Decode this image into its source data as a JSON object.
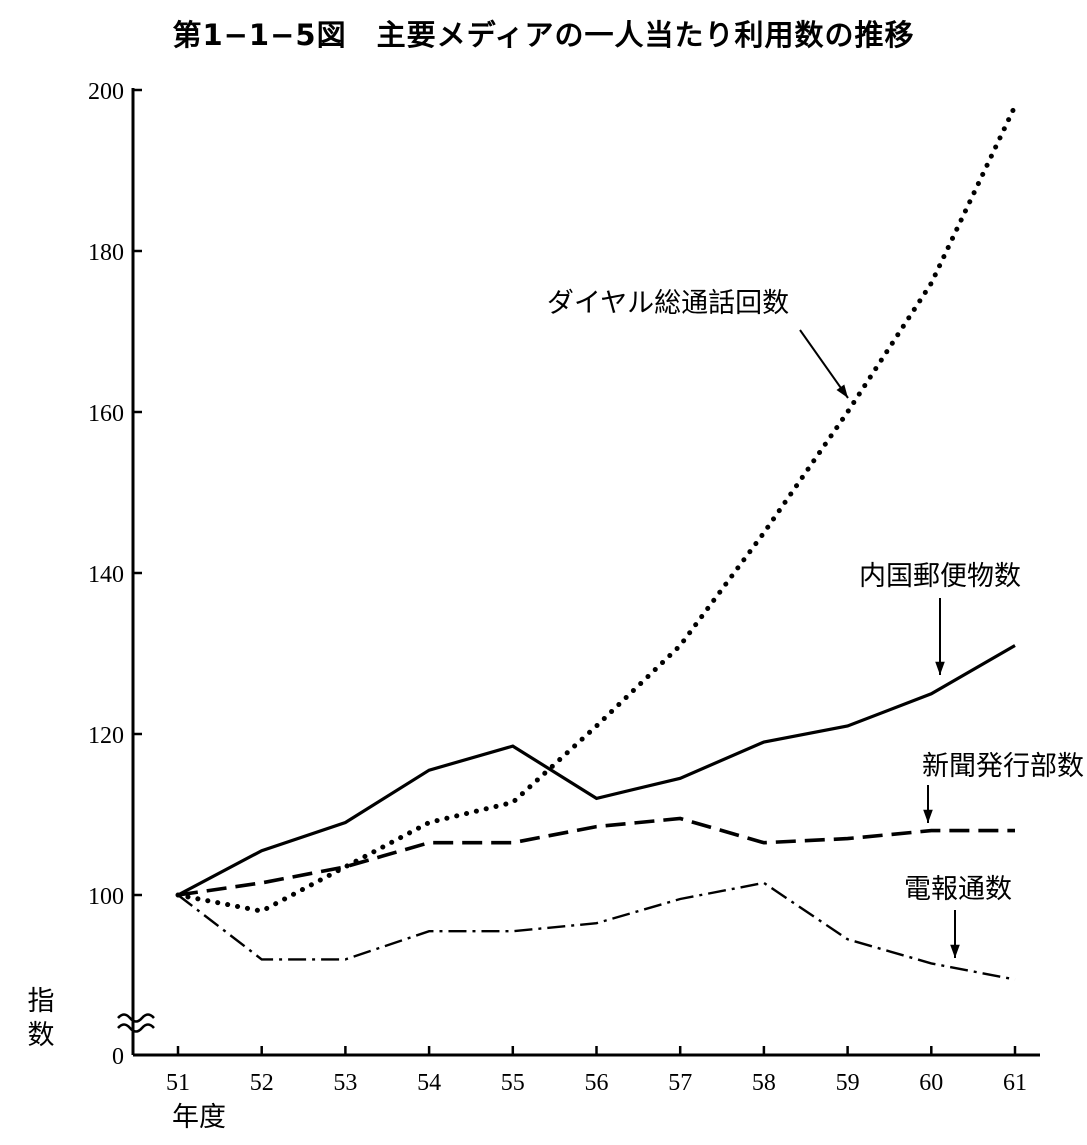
{
  "title": "第1−1−5図　主要メディアの一人当たり利用数の推移",
  "chart_data": {
    "type": "line",
    "categories": [
      "51",
      "52",
      "53",
      "54",
      "55",
      "56",
      "57",
      "58",
      "59",
      "60",
      "61"
    ],
    "xlabel": "年度",
    "ylabel": "指数",
    "yticks": [
      "200",
      "180",
      "160",
      "140",
      "120",
      "100",
      "0"
    ],
    "ylim": [
      0,
      200
    ],
    "axis_break": true,
    "grid": false,
    "series": [
      {
        "name": "ダイヤル総通話回数",
        "style": "dotted",
        "values": [
          100,
          98,
          103.5,
          109,
          111.5,
          121,
          131,
          145,
          160,
          176,
          198
        ]
      },
      {
        "name": "内国郵便物数",
        "style": "solid",
        "values": [
          100,
          105.5,
          109,
          115.5,
          118.5,
          112,
          114.5,
          119,
          121,
          125,
          131
        ]
      },
      {
        "name": "新聞発行部数",
        "style": "dashed",
        "values": [
          100,
          101.5,
          103.5,
          106.5,
          106.5,
          108.5,
          109.5,
          106.5,
          107,
          108,
          108
        ]
      },
      {
        "name": "電報通数",
        "style": "dashdot",
        "values": [
          100,
          92,
          92,
          95.5,
          95.5,
          96.5,
          99.5,
          101.5,
          94.5,
          91.5,
          89.5
        ]
      }
    ]
  }
}
